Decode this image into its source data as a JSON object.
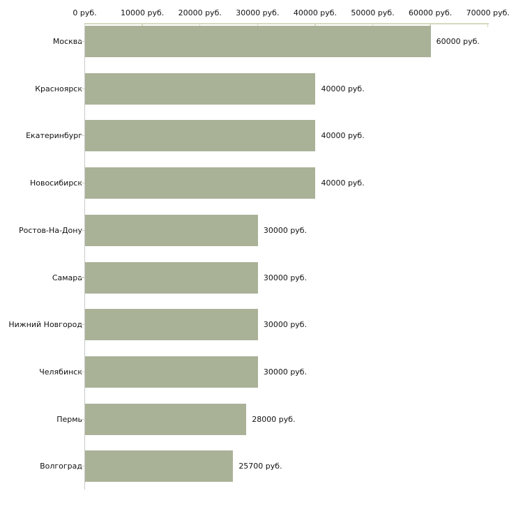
{
  "chart_data": {
    "type": "bar",
    "orientation": "horizontal",
    "title": "",
    "xlabel": "",
    "ylabel": "",
    "unit": "руб.",
    "categories": [
      "Москва",
      "Красноярск",
      "Екатеринбург",
      "Новосибирск",
      "Ростов-На-Дону",
      "Самара",
      "Нижний Новгород",
      "Челябинск",
      "Пермь",
      "Волгоград"
    ],
    "values": [
      60000,
      40000,
      40000,
      40000,
      30000,
      30000,
      30000,
      30000,
      28000,
      25700
    ],
    "value_labels": [
      "60000 руб.",
      "40000 руб.",
      "40000 руб.",
      "40000 руб.",
      "30000 руб.",
      "30000 руб.",
      "30000 руб.",
      "30000 руб.",
      "28000 руб.",
      "25700 руб."
    ],
    "x_axis": {
      "min": 0,
      "max": 70000,
      "tick_values": [
        0,
        10000,
        20000,
        30000,
        40000,
        50000,
        60000,
        70000
      ],
      "tick_labels": [
        "0 руб.",
        "10000 руб.",
        "20000 руб.",
        "30000 руб.",
        "40000 руб.",
        "50000 руб.",
        "60000 руб.",
        "70000 руб."
      ],
      "position": "top"
    },
    "grid": false,
    "legend": false,
    "colors": {
      "bar": "#a9b197",
      "axis_line": "#d6d9c0",
      "y_axis_line": "#c9c9c9",
      "y_tick": "#d2d2c6",
      "text": "#111111",
      "background": "#ffffff"
    }
  }
}
